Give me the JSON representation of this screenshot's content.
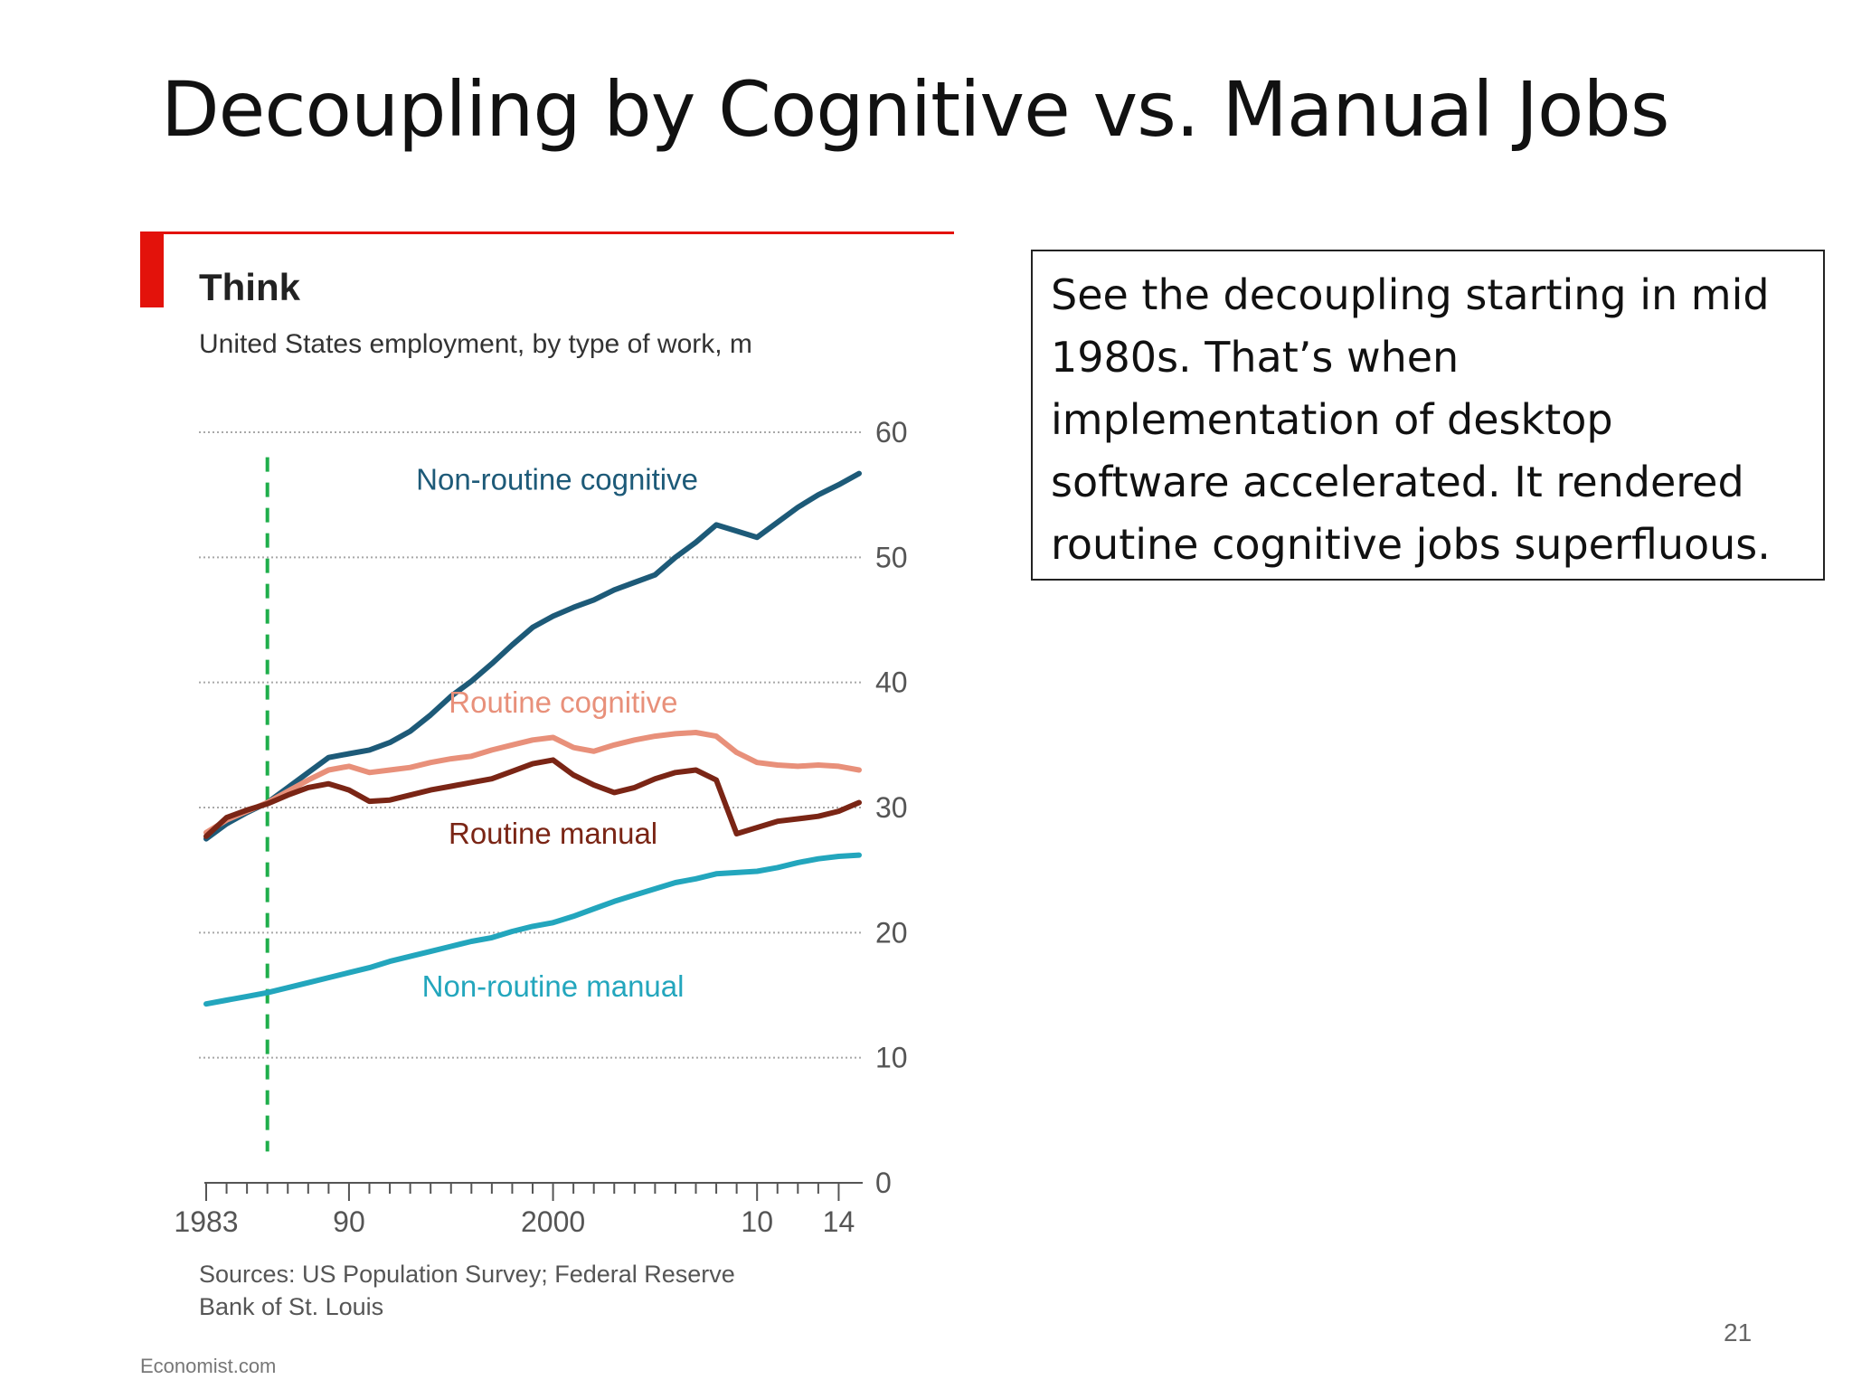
{
  "slide": {
    "title": "Decoupling by Cognitive vs. Manual Jobs",
    "page_number": "21"
  },
  "callout": {
    "lines": [
      "See the decoupling starting in mid",
      "1980s.  That’s when",
      "implementation of desktop",
      "software accelerated.  It rendered",
      "routine cognitive jobs superfluous."
    ]
  },
  "chart_data": {
    "type": "line",
    "title": "Think",
    "subtitle": "United States employment, by type of work, m",
    "xlabel": "",
    "ylabel": "",
    "xlim": [
      1983,
      2015
    ],
    "ylim": [
      0,
      60
    ],
    "y_ticks": [
      0,
      10,
      20,
      30,
      40,
      50,
      60
    ],
    "x_tick_labels": [
      {
        "value": 1983,
        "label": "1983"
      },
      {
        "value": 1990,
        "label": "90"
      },
      {
        "value": 2000,
        "label": "2000"
      },
      {
        "value": 2010,
        "label": "10"
      },
      {
        "value": 2014,
        "label": "14"
      }
    ],
    "grid": true,
    "y_axis_side": "right",
    "legend": "inline-labels",
    "marker_year": 1986,
    "series": [
      {
        "name": "Non-routine cognitive",
        "color": "#1d5a78",
        "x": [
          1983,
          1984,
          1985,
          1986,
          1987,
          1988,
          1989,
          1990,
          1991,
          1992,
          1993,
          1994,
          1995,
          1996,
          1997,
          1998,
          1999,
          2000,
          2001,
          2002,
          2003,
          2004,
          2005,
          2006,
          2007,
          2008,
          2009,
          2010,
          2011,
          2012,
          2013,
          2014,
          2015
        ],
        "y": [
          27.5,
          28.7,
          29.6,
          30.4,
          31.6,
          32.8,
          34.0,
          34.3,
          34.6,
          35.2,
          36.1,
          37.4,
          38.9,
          40.1,
          41.5,
          43.0,
          44.4,
          45.3,
          46.0,
          46.6,
          47.4,
          48.0,
          48.6,
          50.0,
          51.2,
          52.6,
          52.1,
          51.6,
          52.8,
          54.0,
          55.0,
          55.8,
          56.7
        ]
      },
      {
        "name": "Routine cognitive",
        "color": "#e8907a",
        "x": [
          1983,
          1984,
          1985,
          1986,
          1987,
          1988,
          1989,
          1990,
          1991,
          1992,
          1993,
          1994,
          1995,
          1996,
          1997,
          1998,
          1999,
          2000,
          2001,
          2002,
          2003,
          2004,
          2005,
          2006,
          2007,
          2008,
          2009,
          2010,
          2011,
          2012,
          2013,
          2014,
          2015
        ],
        "y": [
          28.0,
          29.0,
          29.7,
          30.4,
          31.3,
          32.2,
          33.0,
          33.3,
          32.8,
          33.0,
          33.2,
          33.6,
          33.9,
          34.1,
          34.6,
          35.0,
          35.4,
          35.6,
          34.8,
          34.5,
          35.0,
          35.4,
          35.7,
          35.9,
          36.0,
          35.7,
          34.4,
          33.6,
          33.4,
          33.3,
          33.4,
          33.3,
          33.0
        ]
      },
      {
        "name": "Routine manual",
        "color": "#7a2515",
        "x": [
          1983,
          1984,
          1985,
          1986,
          1987,
          1988,
          1989,
          1990,
          1991,
          1992,
          1993,
          1994,
          1995,
          1996,
          1997,
          1998,
          1999,
          2000,
          2001,
          2002,
          2003,
          2004,
          2005,
          2006,
          2007,
          2008,
          2009,
          2010,
          2011,
          2012,
          2013,
          2014,
          2015
        ],
        "y": [
          27.7,
          29.2,
          29.8,
          30.3,
          31.0,
          31.6,
          31.9,
          31.4,
          30.5,
          30.6,
          31.0,
          31.4,
          31.7,
          32.0,
          32.3,
          32.9,
          33.5,
          33.8,
          32.6,
          31.8,
          31.2,
          31.6,
          32.3,
          32.8,
          33.0,
          32.2,
          27.9,
          28.4,
          28.9,
          29.1,
          29.3,
          29.7,
          30.4
        ]
      },
      {
        "name": "Non-routine manual",
        "color": "#23a6bd",
        "x": [
          1983,
          1984,
          1985,
          1986,
          1987,
          1988,
          1989,
          1990,
          1991,
          1992,
          1993,
          1994,
          1995,
          1996,
          1997,
          1998,
          1999,
          2000,
          2001,
          2002,
          2003,
          2004,
          2005,
          2006,
          2007,
          2008,
          2009,
          2010,
          2011,
          2012,
          2013,
          2014,
          2015
        ],
        "y": [
          14.3,
          14.6,
          14.9,
          15.2,
          15.6,
          16.0,
          16.4,
          16.8,
          17.2,
          17.7,
          18.1,
          18.5,
          18.9,
          19.3,
          19.6,
          20.1,
          20.5,
          20.8,
          21.3,
          21.9,
          22.5,
          23.0,
          23.5,
          24.0,
          24.3,
          24.7,
          24.8,
          24.9,
          25.2,
          25.6,
          25.9,
          26.1,
          26.2
        ]
      }
    ],
    "source": [
      "Sources: US Population Survey; Federal Reserve",
      "Bank of St. Louis"
    ],
    "credit": "Economist.com",
    "colors": {
      "accent": "#e3120b",
      "gridline": "#a8a8a8",
      "marker": "#1fae4b",
      "text": "#333333"
    }
  }
}
